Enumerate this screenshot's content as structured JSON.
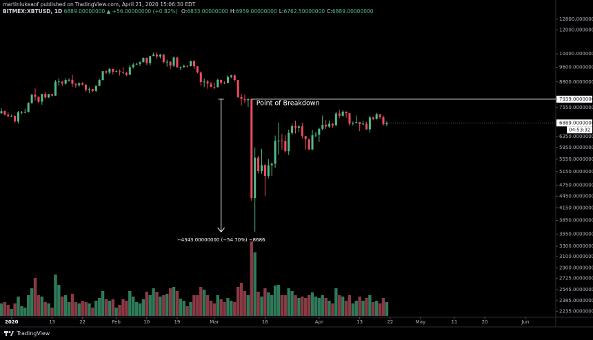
{
  "header": {
    "byline": "martinlukeaof published on TradingView.com, April 21, 2020 15:06:30 EDT",
    "symbol": "BITMEX:XBTUSD, 1D",
    "quote": "6889.00000000 ▲ +56.00000000 (+0.82%)",
    "ohlc": [
      {
        "key": "O:",
        "value": "6833.00000000"
      },
      {
        "key": "H:",
        "value": "6959.00000000"
      },
      {
        "key": "L:",
        "value": "6762.50000000"
      },
      {
        "key": "C:",
        "value": "6889.00000000"
      }
    ]
  },
  "chart_data": {
    "type": "candlestick",
    "log_scale": true,
    "grid": false,
    "up_color": "#53b987",
    "down_color": "#eb4d5c",
    "volume_up_color": "#2f7a5a",
    "volume_down_color": "#8a3a44",
    "xlim": [
      0,
      164
    ],
    "ylim": [
      2160,
      14350
    ],
    "xticks": [
      {
        "value": 3,
        "label": "2020"
      },
      {
        "value": 15,
        "label": "13"
      },
      {
        "value": 24,
        "label": "22"
      },
      {
        "value": 34,
        "label": "Feb"
      },
      {
        "value": 43,
        "label": "10"
      },
      {
        "value": 52,
        "label": "19"
      },
      {
        "value": 63,
        "label": "Mar"
      },
      {
        "value": 78,
        "label": "16"
      },
      {
        "value": 94,
        "label": "Apr"
      },
      {
        "value": 106,
        "label": "13"
      },
      {
        "value": 115,
        "label": "22"
      },
      {
        "value": 124,
        "label": "May"
      },
      {
        "value": 134,
        "label": "11"
      },
      {
        "value": 143,
        "label": "20"
      },
      {
        "value": 155,
        "label": "Jun"
      }
    ],
    "yticks": [
      {
        "value": 12800,
        "label": "12800.00000000"
      },
      {
        "value": 12000,
        "label": "12000.00000000"
      },
      {
        "value": 10400,
        "label": "10400.00000000"
      },
      {
        "value": 9600,
        "label": "9600.00000000"
      },
      {
        "value": 8800,
        "label": "8800.00000000"
      },
      {
        "value": 7550,
        "label": "7550.00000000"
      },
      {
        "value": 6350,
        "label": "6350.00000000"
      },
      {
        "value": 5950,
        "label": "5950.00000000"
      },
      {
        "value": 5550,
        "label": "5550.00000000"
      },
      {
        "value": 5150,
        "label": "5150.00000000"
      },
      {
        "value": 4750,
        "label": "4750.00000000"
      },
      {
        "value": 4450,
        "label": "4450.00000000"
      },
      {
        "value": 4150,
        "label": "4150.00000000"
      },
      {
        "value": 3850,
        "label": "3850.00000000"
      },
      {
        "value": 3550,
        "label": "3550.00000000"
      },
      {
        "value": 3300,
        "label": "3300.00000000"
      },
      {
        "value": 3100,
        "label": "3100.00000000"
      },
      {
        "value": 2900,
        "label": "2900.00000000"
      },
      {
        "value": 2725,
        "label": "2725.00000000"
      },
      {
        "value": 2545,
        "label": "2545.00000000"
      },
      {
        "value": 2385,
        "label": "2385.00000000"
      },
      {
        "value": 2235,
        "label": "2235.00000000"
      }
    ],
    "open": [
      7300,
      7390,
      7240,
      7170,
      7180,
      6950,
      7340,
      7350,
      7350,
      7760,
      8150,
      8050,
      7820,
      8190,
      8020,
      8180,
      8110,
      8810,
      8820,
      8710,
      8900,
      8910,
      8700,
      8630,
      8730,
      8660,
      8390,
      8430,
      8340,
      8600,
      8900,
      9380,
      9300,
      9510,
      9350,
      9380,
      9330,
      9290,
      9180,
      9610,
      9760,
      9800,
      9900,
      10160,
      9850,
      10270,
      10360,
      10240,
      10360,
      9900,
      9920,
      9700,
      10180,
      9600,
      9610,
      9690,
      9670,
      9970,
      9660,
      9310,
      8790,
      8820,
      8710,
      8540,
      8530,
      8910,
      8760,
      8750,
      9070,
      9150,
      8900,
      8040,
      7940,
      7890,
      7939,
      4400,
      5600,
      5170,
      5360,
      5020,
      5350,
      5400,
      6190,
      6200,
      6190,
      5820,
      6490,
      6760,
      6690,
      6750,
      6370,
      6250,
      5880,
      6400,
      6420,
      6650,
      6810,
      6740,
      6860,
      6790,
      7290,
      7190,
      7370,
      7300,
      6860,
      6890,
      6920,
      6840,
      6860,
      6630,
      7120,
      7050,
      7260,
      7130,
      6833
    ],
    "high": [
      7520,
      7420,
      7330,
      7250,
      7210,
      7400,
      7400,
      7500,
      7800,
      8200,
      8460,
      8060,
      8200,
      8290,
      8200,
      8190,
      8890,
      8990,
      8830,
      9000,
      8990,
      9180,
      8730,
      8770,
      8790,
      8670,
      8520,
      8440,
      8620,
      8970,
      9400,
      9430,
      9570,
      9530,
      9450,
      9480,
      9620,
      9350,
      9750,
      9860,
      9880,
      9950,
      10170,
      10180,
      10300,
      10480,
      10520,
      10400,
      10390,
      10050,
      9980,
      10250,
      10230,
      9650,
      9760,
      9700,
      9990,
      10020,
      9670,
      9370,
      8980,
      8900,
      8800,
      8760,
      8980,
      8920,
      8840,
      9150,
      9180,
      9200,
      8910,
      8190,
      8150,
      7980,
      7970,
      5950,
      5660,
      5900,
      5380,
      5550,
      5440,
      6390,
      6900,
      6450,
      6400,
      6620,
      6860,
      6980,
      6790,
      6900,
      6380,
      6270,
      6610,
      6530,
      6700,
      7200,
      7000,
      6990,
      6880,
      7360,
      7460,
      7420,
      7380,
      7310,
      6950,
      7200,
      6930,
      6980,
      6930,
      7190,
      7150,
      7320,
      7260,
      7200,
      6959
    ],
    "low": [
      7270,
      7200,
      7120,
      7140,
      6900,
      6860,
      7260,
      7300,
      7340,
      7720,
      7880,
      7760,
      7680,
      7980,
      8000,
      8060,
      8100,
      8600,
      8580,
      8660,
      8820,
      8540,
      8500,
      8550,
      8610,
      8300,
      8230,
      8270,
      8290,
      8570,
      8880,
      9240,
      9210,
      9200,
      9320,
      9150,
      9230,
      9110,
      9170,
      9530,
      9730,
      9670,
      9890,
      9740,
      9710,
      10260,
      10100,
      10130,
      9840,
      9640,
      9500,
      9610,
      9580,
      9450,
      9580,
      9590,
      9650,
      9520,
      9260,
      8600,
      8530,
      8450,
      8520,
      8430,
      8510,
      8660,
      8680,
      8740,
      9010,
      8830,
      8000,
      7640,
      7750,
      7580,
      4330,
      3600,
      5100,
      5090,
      4450,
      4950,
      5020,
      5270,
      5700,
      5870,
      5770,
      5690,
      6410,
      6470,
      6530,
      6280,
      5870,
      5860,
      5860,
      6330,
      6150,
      6590,
      6640,
      6680,
      6700,
      6780,
      7090,
      7150,
      7110,
      6780,
      6780,
      6860,
      6560,
      6780,
      6610,
      6500,
      7000,
      7030,
      7060,
      6780,
      6762.5
    ],
    "close": [
      7390,
      7240,
      7170,
      7180,
      6950,
      7340,
      7350,
      7350,
      7760,
      8150,
      8050,
      7820,
      8190,
      8020,
      8180,
      8110,
      8810,
      8820,
      8710,
      8900,
      8910,
      8700,
      8630,
      8730,
      8660,
      8390,
      8430,
      8340,
      8600,
      8900,
      9380,
      9300,
      9510,
      9350,
      9380,
      9330,
      9290,
      9180,
      9610,
      9760,
      9800,
      9900,
      10160,
      9850,
      10270,
      10360,
      10240,
      10360,
      9900,
      9920,
      9700,
      10180,
      9600,
      9610,
      9690,
      9670,
      9970,
      9660,
      9310,
      8790,
      8820,
      8710,
      8540,
      8530,
      8910,
      8760,
      8750,
      9070,
      9150,
      8900,
      8040,
      7940,
      7890,
      7939,
      4400,
      5600,
      5170,
      5360,
      5020,
      5350,
      5400,
      6190,
      6200,
      6190,
      5820,
      6490,
      6760,
      6690,
      6750,
      6370,
      6250,
      5880,
      6400,
      6420,
      6650,
      6810,
      6740,
      6860,
      6790,
      7290,
      7190,
      7370,
      7300,
      6860,
      6890,
      6920,
      6840,
      6860,
      6630,
      7120,
      7050,
      7260,
      7130,
      6833,
      6889
    ],
    "volume": [
      18,
      20,
      16,
      10,
      18,
      28,
      14,
      12,
      30,
      40,
      55,
      30,
      28,
      20,
      18,
      12,
      60,
      45,
      28,
      30,
      20,
      32,
      20,
      18,
      22,
      20,
      18,
      12,
      22,
      26,
      36,
      24,
      22,
      24,
      12,
      16,
      24,
      22,
      36,
      28,
      20,
      18,
      24,
      35,
      30,
      40,
      35,
      28,
      30,
      32,
      40,
      42,
      36,
      25,
      22,
      14,
      20,
      30,
      30,
      42,
      38,
      30,
      22,
      18,
      30,
      24,
      20,
      26,
      22,
      20,
      42,
      48,
      36,
      30,
      108,
      92,
      35,
      28,
      40,
      34,
      30,
      44,
      45,
      30,
      30,
      40,
      36,
      30,
      26,
      28,
      26,
      30,
      34,
      28,
      26,
      30,
      26,
      22,
      18,
      40,
      30,
      28,
      22,
      30,
      18,
      22,
      28,
      22,
      26,
      30,
      20,
      22,
      18,
      26,
      20
    ],
    "breakdown": {
      "value": 7939,
      "label": "7939.00000000",
      "text": "Point of Breakdown",
      "start": 74
    },
    "last_price": {
      "value": 6889,
      "label": "6889.00000000",
      "countdown": "04:53:32"
    },
    "measure": {
      "x": 65,
      "from": 7939,
      "to": 3596,
      "label": "−4343.00000000 (−54.70%) −8686"
    }
  },
  "footer": {
    "brand": "TradingView"
  }
}
